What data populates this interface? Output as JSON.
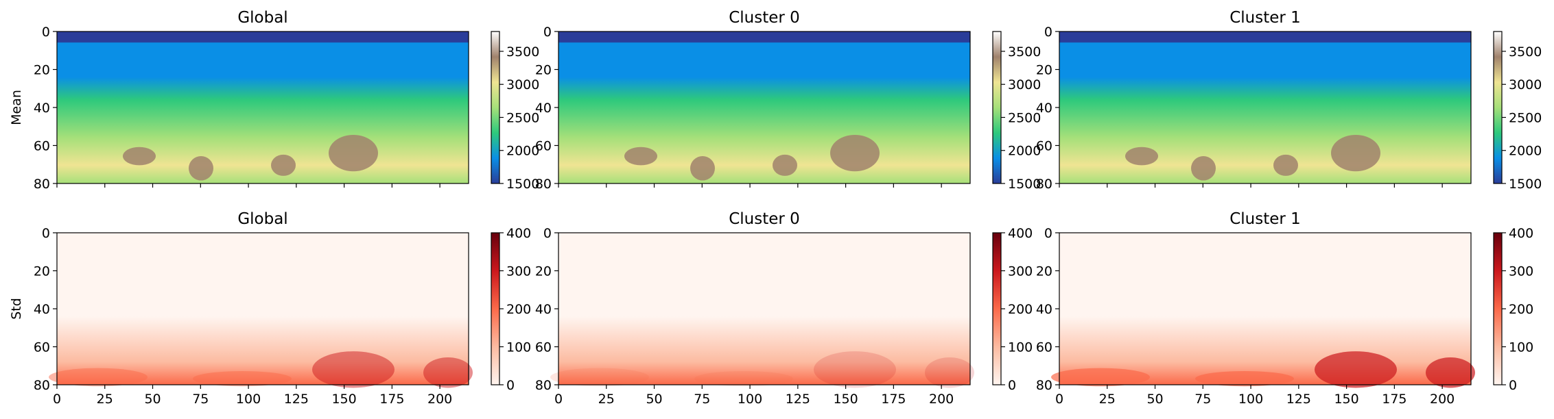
{
  "chart_data": [
    {
      "type": "heatmap",
      "row": "mean",
      "title": "Global",
      "ylabel": "Mean",
      "xlim": [
        0,
        215
      ],
      "ylim": [
        80,
        0
      ],
      "yticks": [
        "0",
        "20",
        "40",
        "60",
        "80"
      ],
      "xticks": [],
      "colormap": "terrain",
      "clim": [
        1500,
        3800
      ],
      "colorbar_ticks": [
        "1500",
        "2000",
        "2500",
        "3000",
        "3500"
      ],
      "colors": [
        "#2a3d99",
        "#0a8fe6",
        "#2ec97c",
        "#a6e07a",
        "#efe493",
        "#a0826c",
        "#ffffff"
      ]
    },
    {
      "type": "heatmap",
      "row": "mean",
      "title": "Cluster 0",
      "ylabel": "",
      "xlim": [
        0,
        215
      ],
      "ylim": [
        80,
        0
      ],
      "yticks": [
        "0",
        "20",
        "40",
        "60",
        "80"
      ],
      "xticks": [],
      "colormap": "terrain",
      "clim": [
        1500,
        3800
      ],
      "colorbar_ticks": [
        "1500",
        "2000",
        "2500",
        "3000",
        "3500"
      ],
      "colors": [
        "#2a3d99",
        "#0a8fe6",
        "#2ec97c",
        "#a6e07a",
        "#efe493",
        "#a0826c",
        "#ffffff"
      ]
    },
    {
      "type": "heatmap",
      "row": "mean",
      "title": "Cluster 1",
      "ylabel": "",
      "xlim": [
        0,
        215
      ],
      "ylim": [
        80,
        0
      ],
      "yticks": [
        "0",
        "20",
        "40",
        "60",
        "80"
      ],
      "xticks": [],
      "colormap": "terrain",
      "clim": [
        1500,
        3800
      ],
      "colorbar_ticks": [
        "1500",
        "2000",
        "2500",
        "3000",
        "3500"
      ],
      "colors": [
        "#2a3d99",
        "#0a8fe6",
        "#2ec97c",
        "#a6e07a",
        "#efe493",
        "#a0826c",
        "#ffffff"
      ]
    },
    {
      "type": "heatmap",
      "row": "std",
      "title": "Global",
      "ylabel": "Std",
      "xlim": [
        0,
        215
      ],
      "ylim": [
        80,
        0
      ],
      "yticks": [
        "0",
        "20",
        "40",
        "60",
        "80"
      ],
      "xticks": [
        "0",
        "25",
        "50",
        "75",
        "100",
        "125",
        "150",
        "175",
        "200"
      ],
      "colormap": "Reds",
      "clim": [
        0,
        400
      ],
      "colorbar_ticks": [
        "0",
        "100",
        "200",
        "300",
        "400"
      ],
      "colors": [
        "#fff5f0",
        "#fcbba1",
        "#fb6a4a",
        "#cb181d",
        "#67000d"
      ]
    },
    {
      "type": "heatmap",
      "row": "std",
      "title": "Cluster 0",
      "ylabel": "",
      "xlim": [
        0,
        215
      ],
      "ylim": [
        80,
        0
      ],
      "yticks": [
        "0",
        "20",
        "40",
        "60",
        "80"
      ],
      "xticks": [
        "0",
        "25",
        "50",
        "75",
        "100",
        "125",
        "150",
        "175",
        "200"
      ],
      "colormap": "Reds",
      "clim": [
        0,
        400
      ],
      "colorbar_ticks": [
        "0",
        "100",
        "200",
        "300",
        "400"
      ],
      "colors": [
        "#fff5f0",
        "#fcbba1",
        "#fb6a4a",
        "#cb181d",
        "#67000d"
      ]
    },
    {
      "type": "heatmap",
      "row": "std",
      "title": "Cluster 1",
      "ylabel": "",
      "xlim": [
        0,
        215
      ],
      "ylim": [
        80,
        0
      ],
      "yticks": [
        "0",
        "20",
        "40",
        "60",
        "80"
      ],
      "xticks": [
        "0",
        "25",
        "50",
        "75",
        "100",
        "125",
        "150",
        "175",
        "200"
      ],
      "colormap": "Reds",
      "clim": [
        0,
        400
      ],
      "colorbar_ticks": [
        "0",
        "100",
        "200",
        "300",
        "400"
      ],
      "colors": [
        "#fff5f0",
        "#fcbba1",
        "#fb6a4a",
        "#cb181d",
        "#67000d"
      ]
    }
  ]
}
